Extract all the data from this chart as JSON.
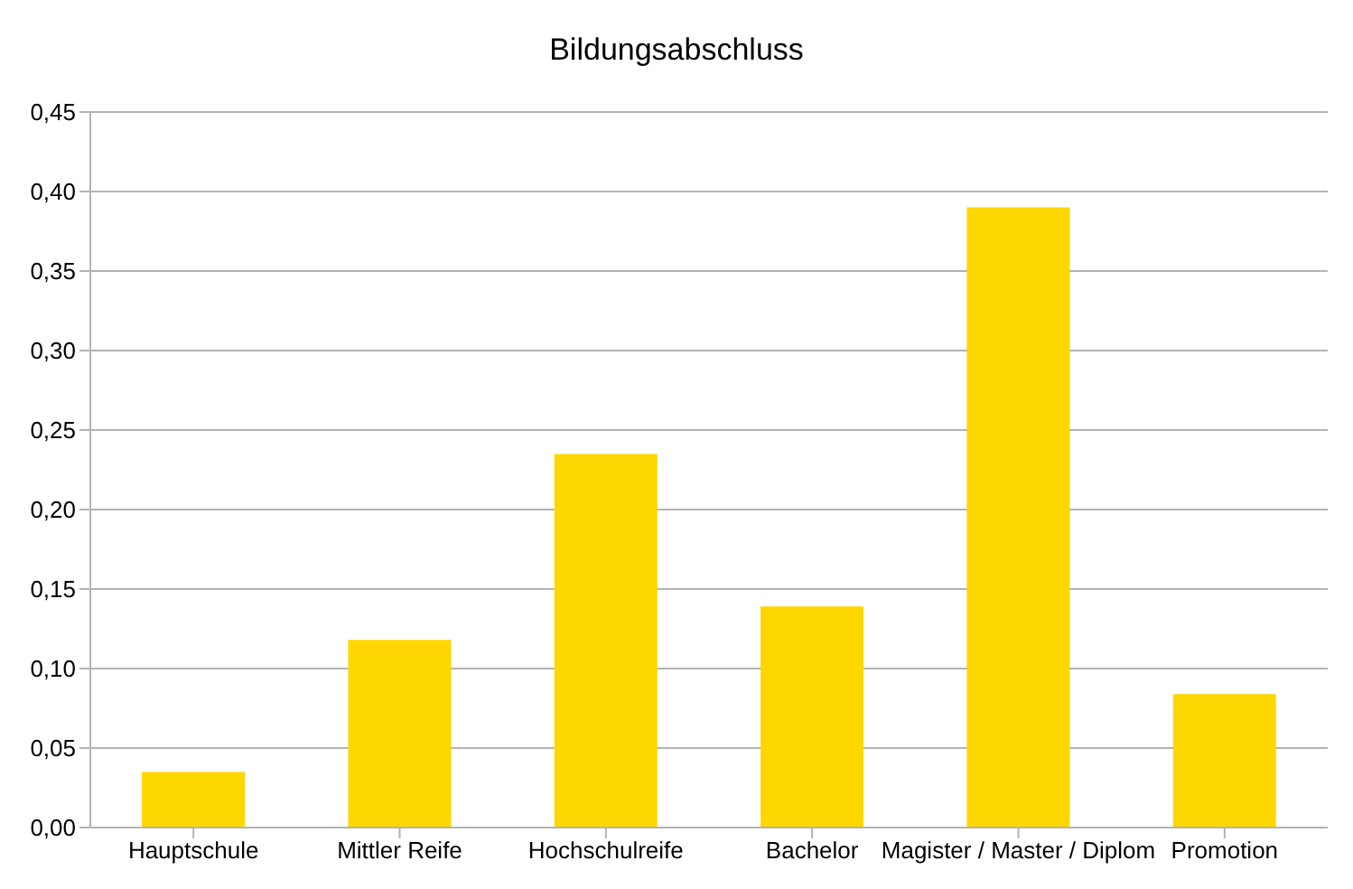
{
  "chart_data": {
    "type": "bar",
    "title": "Bildungsabschluss",
    "categories": [
      "Hauptschule",
      "Mittler Reife",
      "Hochschulreife",
      "Bachelor",
      "Magister / Master / Diplom",
      "Promotion"
    ],
    "values": [
      0.035,
      0.118,
      0.235,
      0.139,
      0.39,
      0.084
    ],
    "color": "#ffd700",
    "ylim": [
      0,
      0.45
    ],
    "yticks": [
      {
        "value": 0,
        "label": "0,00"
      },
      {
        "value": 0.05,
        "label": "0,05"
      },
      {
        "value": 0.1,
        "label": "0,10"
      },
      {
        "value": 0.15,
        "label": "0,15"
      },
      {
        "value": 0.2,
        "label": "0,20"
      },
      {
        "value": 0.25,
        "label": "0,25"
      },
      {
        "value": 0.3,
        "label": "0,30"
      },
      {
        "value": 0.35,
        "label": "0,35"
      },
      {
        "value": 0.4,
        "label": "0,40"
      },
      {
        "value": 0.45,
        "label": "0,45"
      }
    ],
    "grid": "y"
  }
}
